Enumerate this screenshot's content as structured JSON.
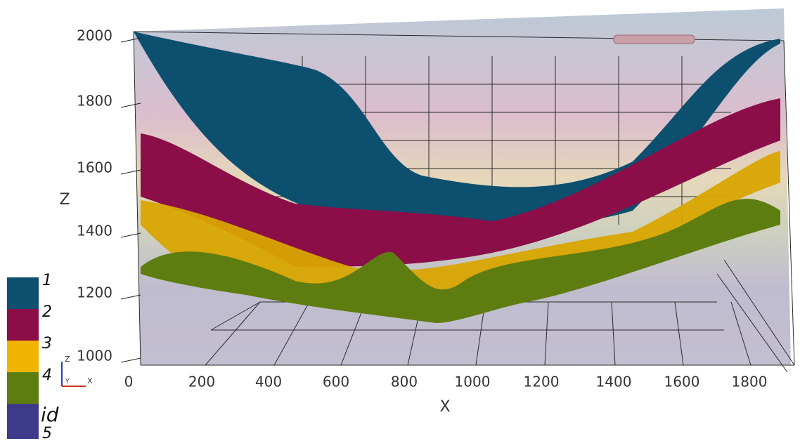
{
  "z_axis": {
    "label": "Z",
    "ticks": [
      "2000",
      "1800",
      "1600",
      "1400",
      "1200",
      "1000"
    ]
  },
  "x_axis": {
    "label": "X",
    "ticks": [
      "0",
      "200",
      "400",
      "600",
      "800",
      "1000",
      "1200",
      "1400",
      "1600",
      "1800"
    ]
  },
  "legend": {
    "title": "id",
    "items": [
      {
        "label": "1",
        "color": "#0d4f6f"
      },
      {
        "label": "2",
        "color": "#8b0e48"
      },
      {
        "label": "3",
        "color": "#f0b400"
      },
      {
        "label": "4",
        "color": "#5e7d10"
      },
      {
        "label": "5",
        "color": "#3e3a8a"
      }
    ]
  },
  "orientation": {
    "labels": [
      "Z",
      "Y",
      "X"
    ]
  }
}
